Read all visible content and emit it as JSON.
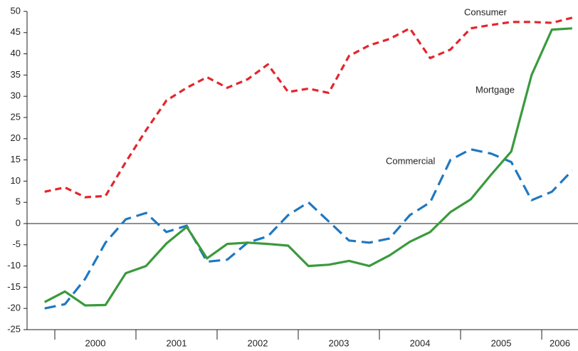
{
  "chart_data": {
    "type": "line",
    "x": [
      1999.875,
      2000.125,
      2000.375,
      2000.625,
      2000.875,
      2001.125,
      2001.375,
      2001.625,
      2001.875,
      2002.125,
      2002.375,
      2002.625,
      2002.875,
      2003.125,
      2003.375,
      2003.625,
      2003.875,
      2004.125,
      2004.375,
      2004.625,
      2004.875,
      2005.125,
      2005.375,
      2005.625,
      2005.875,
      2006.125,
      2006.375
    ],
    "series": [
      {
        "name": "Consumer",
        "color": "#e3262d",
        "values": [
          7.5,
          8.5,
          6.2,
          6.5,
          14.5,
          22,
          29,
          32,
          34.5,
          32,
          34,
          37.5,
          31,
          31.8,
          30.8,
          39.5,
          42,
          43.5,
          46,
          39,
          41,
          46,
          46.8,
          47.5,
          47.5,
          47.3,
          48.5
        ]
      },
      {
        "name": "Commercial",
        "color": "#1f78c1",
        "values": [
          -20,
          -19,
          -13,
          -4.5,
          1,
          2.5,
          -2,
          -0.5,
          -9,
          -8.5,
          -4.5,
          -3,
          2,
          5,
          0.5,
          -4,
          -4.5,
          -3.5,
          2,
          5,
          15,
          17.5,
          16.5,
          14.5,
          5.5,
          7.5,
          12.5
        ]
      },
      {
        "name": "Mortgage",
        "color": "#3a9a3c",
        "values": [
          -18.5,
          -16,
          -19.3,
          -19.2,
          -11.7,
          -10,
          -4.7,
          -0.8,
          -8.2,
          -4.8,
          -4.5,
          -4.8,
          -5.2,
          -10,
          -9.7,
          -8.8,
          -10,
          -7.5,
          -4.3,
          -2,
          2.7,
          5.7,
          11.5,
          17,
          35,
          45.7,
          46
        ]
      }
    ],
    "xlim": [
      1999.658,
      2006.447
    ],
    "xticks": [
      {
        "value": 2000,
        "label": "2000"
      },
      {
        "value": 2001,
        "label": "2001"
      },
      {
        "value": 2002,
        "label": "2002"
      },
      {
        "value": 2003,
        "label": "2003"
      },
      {
        "value": 2004,
        "label": "2004"
      },
      {
        "value": 2005,
        "label": "2005"
      },
      {
        "value": 2006,
        "label": "2006"
      }
    ],
    "ylim": [
      -25,
      50
    ],
    "yticks": [
      -25,
      -20,
      -15,
      -10,
      -5,
      0,
      5,
      10,
      15,
      20,
      25,
      30,
      35,
      40,
      45,
      50
    ]
  }
}
